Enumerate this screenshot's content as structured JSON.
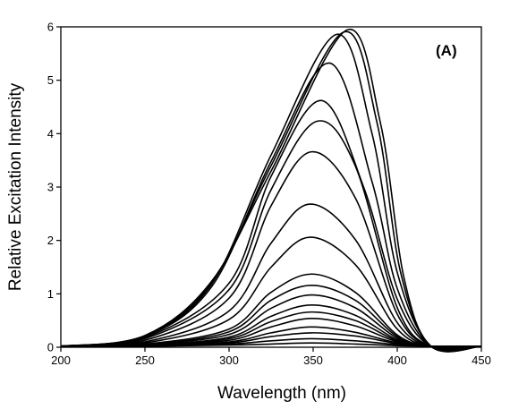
{
  "chart_data": {
    "type": "line",
    "title": "",
    "panel_label": "(A)",
    "xlabel": "Wavelength (nm)",
    "ylabel": "Relative Excitation Intensity",
    "xlim": [
      200,
      450
    ],
    "ylim": [
      0,
      6
    ],
    "xticks": [
      200,
      250,
      300,
      350,
      400,
      450
    ],
    "yticks": [
      0,
      1,
      2,
      3,
      4,
      5,
      6
    ],
    "grid": false,
    "legend": "none",
    "series": [
      {
        "peak_x": 349,
        "values": [
          [
            200,
            0.02
          ],
          [
            250,
            0.02
          ],
          [
            300,
            0.04
          ],
          [
            325,
            0.06
          ],
          [
            349,
            0.08
          ],
          [
            375,
            0.06
          ],
          [
            400,
            0.03
          ],
          [
            420,
            0.02
          ],
          [
            450,
            0.02
          ]
        ]
      },
      {
        "peak_x": 349,
        "values": [
          [
            200,
            0.02
          ],
          [
            250,
            0.02
          ],
          [
            300,
            0.06
          ],
          [
            325,
            0.12
          ],
          [
            349,
            0.16
          ],
          [
            375,
            0.12
          ],
          [
            400,
            0.05
          ],
          [
            420,
            0.02
          ],
          [
            450,
            0.02
          ]
        ]
      },
      {
        "peak_x": 349,
        "values": [
          [
            200,
            0.02
          ],
          [
            250,
            0.03
          ],
          [
            300,
            0.08
          ],
          [
            325,
            0.2
          ],
          [
            349,
            0.27
          ],
          [
            375,
            0.21
          ],
          [
            400,
            0.07
          ],
          [
            420,
            0.02
          ],
          [
            450,
            0.02
          ]
        ]
      },
      {
        "peak_x": 349,
        "values": [
          [
            200,
            0.02
          ],
          [
            250,
            0.03
          ],
          [
            300,
            0.1
          ],
          [
            325,
            0.27
          ],
          [
            349,
            0.38
          ],
          [
            375,
            0.28
          ],
          [
            400,
            0.08
          ],
          [
            420,
            0.02
          ],
          [
            450,
            0.02
          ]
        ]
      },
      {
        "peak_x": 349,
        "values": [
          [
            200,
            0.02
          ],
          [
            250,
            0.03
          ],
          [
            300,
            0.13
          ],
          [
            325,
            0.38
          ],
          [
            349,
            0.54
          ],
          [
            375,
            0.4
          ],
          [
            400,
            0.1
          ],
          [
            420,
            0.02
          ],
          [
            450,
            0.02
          ]
        ]
      },
      {
        "peak_x": 349,
        "values": [
          [
            200,
            0.02
          ],
          [
            250,
            0.04
          ],
          [
            300,
            0.16
          ],
          [
            325,
            0.48
          ],
          [
            349,
            0.66
          ],
          [
            375,
            0.5
          ],
          [
            400,
            0.12
          ],
          [
            420,
            0.02
          ],
          [
            450,
            0.02
          ]
        ]
      },
      {
        "peak_x": 349,
        "values": [
          [
            200,
            0.02
          ],
          [
            250,
            0.04
          ],
          [
            300,
            0.19
          ],
          [
            325,
            0.58
          ],
          [
            349,
            0.79
          ],
          [
            375,
            0.6
          ],
          [
            400,
            0.14
          ],
          [
            420,
            0.02
          ],
          [
            450,
            0.02
          ]
        ]
      },
      {
        "peak_x": 349,
        "values": [
          [
            200,
            0.02
          ],
          [
            250,
            0.05
          ],
          [
            300,
            0.24
          ],
          [
            325,
            0.73
          ],
          [
            349,
            0.98
          ],
          [
            375,
            0.74
          ],
          [
            400,
            0.17
          ],
          [
            420,
            0.02
          ],
          [
            450,
            0.02
          ]
        ]
      },
      {
        "peak_x": 349,
        "values": [
          [
            200,
            0.02
          ],
          [
            250,
            0.05
          ],
          [
            300,
            0.29
          ],
          [
            325,
            0.88
          ],
          [
            349,
            1.16
          ],
          [
            375,
            0.88
          ],
          [
            400,
            0.2
          ],
          [
            420,
            0.02
          ],
          [
            450,
            0.02
          ]
        ]
      },
      {
        "peak_x": 349,
        "values": [
          [
            200,
            0.02
          ],
          [
            250,
            0.06
          ],
          [
            300,
            0.34
          ],
          [
            325,
            1.03
          ],
          [
            349,
            1.37
          ],
          [
            375,
            1.03
          ],
          [
            400,
            0.23
          ],
          [
            420,
            0.02
          ],
          [
            450,
            0.02
          ]
        ]
      },
      {
        "peak_x": 348,
        "values": [
          [
            200,
            0.02
          ],
          [
            250,
            0.08
          ],
          [
            300,
            0.52
          ],
          [
            325,
            1.5
          ],
          [
            348,
            2.06
          ],
          [
            375,
            1.55
          ],
          [
            400,
            0.34
          ],
          [
            420,
            0.02
          ],
          [
            450,
            0.02
          ]
        ]
      },
      {
        "peak_x": 348,
        "values": [
          [
            200,
            0.02
          ],
          [
            250,
            0.1
          ],
          [
            300,
            0.68
          ],
          [
            325,
            1.95
          ],
          [
            348,
            2.68
          ],
          [
            375,
            2.02
          ],
          [
            400,
            0.46
          ],
          [
            420,
            0.02
          ],
          [
            450,
            0.02
          ]
        ]
      },
      {
        "peak_x": 349,
        "values": [
          [
            200,
            0.02
          ],
          [
            250,
            0.13
          ],
          [
            300,
            0.92
          ],
          [
            325,
            2.65
          ],
          [
            349,
            3.66
          ],
          [
            375,
            2.8
          ],
          [
            400,
            0.62
          ],
          [
            420,
            0.02
          ],
          [
            450,
            0.02
          ]
        ]
      },
      {
        "peak_x": 352,
        "values": [
          [
            200,
            0.02
          ],
          [
            250,
            0.16
          ],
          [
            300,
            1.08
          ],
          [
            325,
            2.95
          ],
          [
            352,
            4.23
          ],
          [
            375,
            3.4
          ],
          [
            400,
            0.74
          ],
          [
            420,
            0.02
          ],
          [
            450,
            0.02
          ]
        ]
      },
      {
        "peak_x": 355,
        "values": [
          [
            200,
            0.02
          ],
          [
            250,
            0.18
          ],
          [
            300,
            1.2
          ],
          [
            325,
            3.2
          ],
          [
            355,
            4.62
          ],
          [
            380,
            3.0
          ],
          [
            400,
            0.9
          ],
          [
            420,
            0.02
          ],
          [
            450,
            0.02
          ]
        ]
      },
      {
        "peak_x": 360,
        "values": [
          [
            200,
            0.02
          ],
          [
            250,
            0.2
          ],
          [
            290,
            1.15
          ],
          [
            325,
            3.48
          ],
          [
            360,
            5.32
          ],
          [
            385,
            3.1
          ],
          [
            400,
            1.1
          ],
          [
            420,
            0.02
          ],
          [
            450,
            0.02
          ]
        ]
      },
      {
        "peak_x": 364,
        "values": [
          [
            200,
            0.02
          ],
          [
            250,
            0.21
          ],
          [
            290,
            1.2
          ],
          [
            325,
            3.6
          ],
          [
            364,
            5.86
          ],
          [
            385,
            4.0
          ],
          [
            400,
            1.4
          ],
          [
            420,
            0.02
          ],
          [
            450,
            0.02
          ]
        ]
      },
      {
        "peak_x": 368,
        "values": [
          [
            200,
            0.02
          ],
          [
            250,
            0.21
          ],
          [
            290,
            1.22
          ],
          [
            325,
            3.4
          ],
          [
            368,
            5.9
          ],
          [
            388,
            4.2
          ],
          [
            402,
            1.4
          ],
          [
            420,
            0.02
          ],
          [
            450,
            0.02
          ]
        ]
      },
      {
        "peak_x": 370,
        "values": [
          [
            200,
            0.02
          ],
          [
            250,
            0.22
          ],
          [
            290,
            1.25
          ],
          [
            325,
            3.3
          ],
          [
            370,
            5.94
          ],
          [
            390,
            4.2
          ],
          [
            404,
            1.3
          ],
          [
            420,
            0.02
          ],
          [
            450,
            0.02
          ]
        ]
      }
    ]
  }
}
